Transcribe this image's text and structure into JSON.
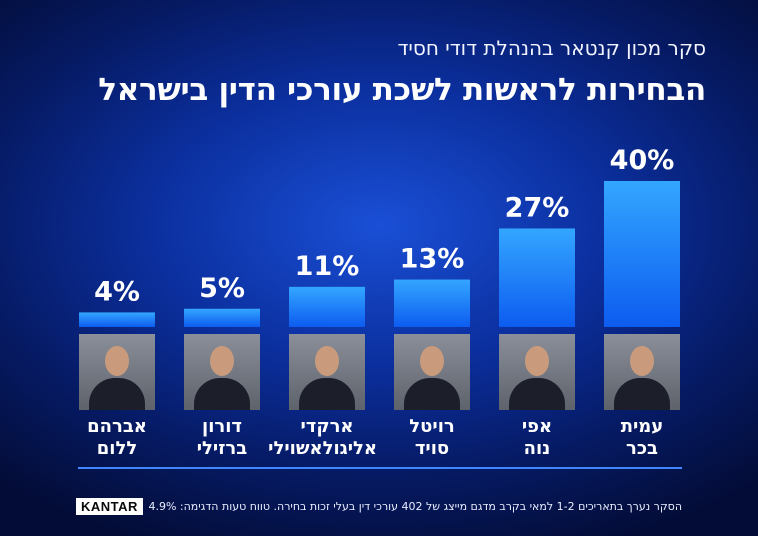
{
  "header": {
    "subtitle": "סקר מכון קנטאר בהנהלת דודי חסיד",
    "title": "הבחירות לראשות לשכת עורכי הדין בישראל"
  },
  "chart_data": {
    "type": "bar",
    "categories": [
      "אברהם ללום",
      "דורון ברזילי",
      "ארקדי אליגולאשוילי",
      "רויטל סויד",
      "אפי נוה",
      "עמית בכר"
    ],
    "name_lines": [
      [
        "אברהם",
        "ללום"
      ],
      [
        "דורון",
        "ברזילי"
      ],
      [
        "ארקדי",
        "אליגולאשוילי"
      ],
      [
        "רויטל",
        "סויד"
      ],
      [
        "אפי",
        "נוה"
      ],
      [
        "עמית",
        "בכר"
      ]
    ],
    "values": [
      4,
      5,
      11,
      13,
      27,
      40
    ],
    "value_labels": [
      "4%",
      "5%",
      "11%",
      "13%",
      "27%",
      "40%"
    ],
    "unit": "%",
    "ylim": [
      0,
      40
    ],
    "grid": false,
    "bar_color": "#1e8cff"
  },
  "footer": {
    "logo": "KANTAR",
    "note": "הסקר נערך בתאריכים 1-2 למאי בקרב מדגם מייצג של 402 עורכי דין בעלי זכות בחירה. טווח טעות הדגימה: 4.9%"
  }
}
